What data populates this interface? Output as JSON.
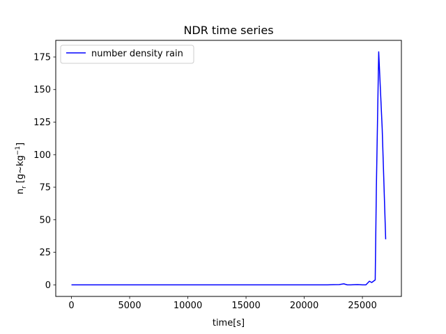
{
  "chart_data": {
    "type": "line",
    "title": "NDR time series",
    "xlabel": "time[s]",
    "ylabel": {
      "prefix": "n",
      "subscript": "r",
      "unit_open": " [g~kg",
      "superscript": "−1",
      "unit_close": "]"
    },
    "xlim": [
      -1350,
      28350
    ],
    "ylim": [
      -8.9,
      187.8
    ],
    "xticks": [
      0,
      5000,
      10000,
      15000,
      20000,
      25000
    ],
    "xtick_labels": [
      "0",
      "5000",
      "10000",
      "15000",
      "20000",
      "25000"
    ],
    "yticks": [
      0,
      25,
      50,
      75,
      100,
      125,
      150,
      175
    ],
    "ytick_labels": [
      "0",
      "25",
      "50",
      "75",
      "100",
      "125",
      "150",
      "175"
    ],
    "grid": false,
    "legend_position": "upper-left",
    "series": [
      {
        "name": "number density rain",
        "color": "#0000ff",
        "x": [
          0,
          5000,
          10000,
          15000,
          20000,
          22000,
          22500,
          23000,
          23400,
          23700,
          24000,
          24600,
          25000,
          25300,
          25600,
          25800,
          26100,
          26200,
          26400,
          26700,
          27000
        ],
        "y": [
          0,
          0,
          0,
          0,
          0,
          0,
          0.1,
          0.2,
          0.8,
          0,
          0,
          0.2,
          0,
          0,
          2.8,
          1.8,
          3.8,
          75,
          179,
          120,
          35
        ]
      }
    ]
  }
}
